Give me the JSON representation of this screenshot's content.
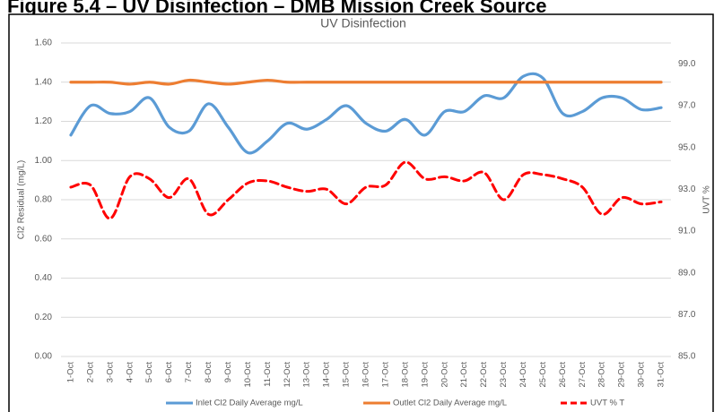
{
  "figure_title": "Figure 5.4 – UV Disinfection – DMB Mission Creek Source",
  "chart_data": {
    "type": "line",
    "title": "UV Disinfection",
    "y_label": "Cl2 Residual (mg/L)",
    "y2_label": "UVT %",
    "categories": [
      "1-Oct",
      "2-Oct",
      "3-Oct",
      "4-Oct",
      "5-Oct",
      "6-Oct",
      "7-Oct",
      "8-Oct",
      "9-Oct",
      "10-Oct",
      "11-Oct",
      "12-Oct",
      "13-Oct",
      "14-Oct",
      "15-Oct",
      "16-Oct",
      "17-Oct",
      "18-Oct",
      "19-Oct",
      "20-Oct",
      "21-Oct",
      "22-Oct",
      "23-Oct",
      "24-Oct",
      "25-Oct",
      "26-Oct",
      "27-Oct",
      "28-Oct",
      "29-Oct",
      "30-Oct",
      "31-Oct"
    ],
    "series": [
      {
        "name": "Inlet Cl2 Daily Average mg/L",
        "color": "#5b9bd5",
        "dash": false,
        "values": [
          1.13,
          1.28,
          1.24,
          1.25,
          1.32,
          1.17,
          1.15,
          1.29,
          1.17,
          1.04,
          1.1,
          1.19,
          1.16,
          1.21,
          1.28,
          1.19,
          1.15,
          1.21,
          1.13,
          1.25,
          1.25,
          1.33,
          1.32,
          1.43,
          1.42,
          1.24,
          1.25,
          1.32,
          1.32,
          1.26,
          1.27
        ]
      },
      {
        "name": "Outlet Cl2 Daily Average mg/L",
        "color": "#ed7d31",
        "dash": false,
        "values": [
          1.4,
          1.4,
          1.4,
          1.39,
          1.4,
          1.39,
          1.41,
          1.4,
          1.39,
          1.4,
          1.41,
          1.4,
          1.4,
          1.4,
          1.4,
          1.4,
          1.4,
          1.4,
          1.4,
          1.4,
          1.4,
          1.4,
          1.4,
          1.4,
          1.4,
          1.4,
          1.4,
          1.4,
          1.4,
          1.4,
          1.4
        ]
      },
      {
        "name": "UVT % T",
        "color": "#ff0000",
        "dash": true,
        "axis": "y2",
        "values": [
          93.1,
          93.2,
          91.6,
          93.6,
          93.5,
          92.6,
          93.5,
          91.8,
          92.5,
          93.3,
          93.4,
          93.1,
          92.9,
          93.0,
          92.3,
          93.1,
          93.2,
          94.3,
          93.5,
          93.6,
          93.4,
          93.8,
          92.5,
          93.7,
          93.7,
          93.5,
          93.1,
          91.8,
          92.6,
          92.3,
          92.4
        ]
      }
    ],
    "ylim": [
      0,
      1.6
    ],
    "yticks": [
      {
        "value": 0,
        "label": "0.00"
      },
      {
        "value": 0.2,
        "label": "0.20"
      },
      {
        "value": 0.4,
        "label": "0.40"
      },
      {
        "value": 0.6,
        "label": "0.60"
      },
      {
        "value": 0.8,
        "label": "0.80"
      },
      {
        "value": 1.0,
        "label": "1.00"
      },
      {
        "value": 1.2,
        "label": "1.20"
      },
      {
        "value": 1.4,
        "label": "1.40"
      },
      {
        "value": 1.6,
        "label": "1.60"
      }
    ],
    "y2lim": [
      85,
      100
    ],
    "y2ticks": [
      {
        "value": 85,
        "label": "85.0"
      },
      {
        "value": 87,
        "label": "87.0"
      },
      {
        "value": 89,
        "label": "89.0"
      },
      {
        "value": 91,
        "label": "91.0"
      },
      {
        "value": 93,
        "label": "93.0"
      },
      {
        "value": 95,
        "label": "95.0"
      },
      {
        "value": 97,
        "label": "97.0"
      },
      {
        "value": 99,
        "label": "99.0"
      }
    ],
    "grid": true,
    "legend": "bottom"
  }
}
